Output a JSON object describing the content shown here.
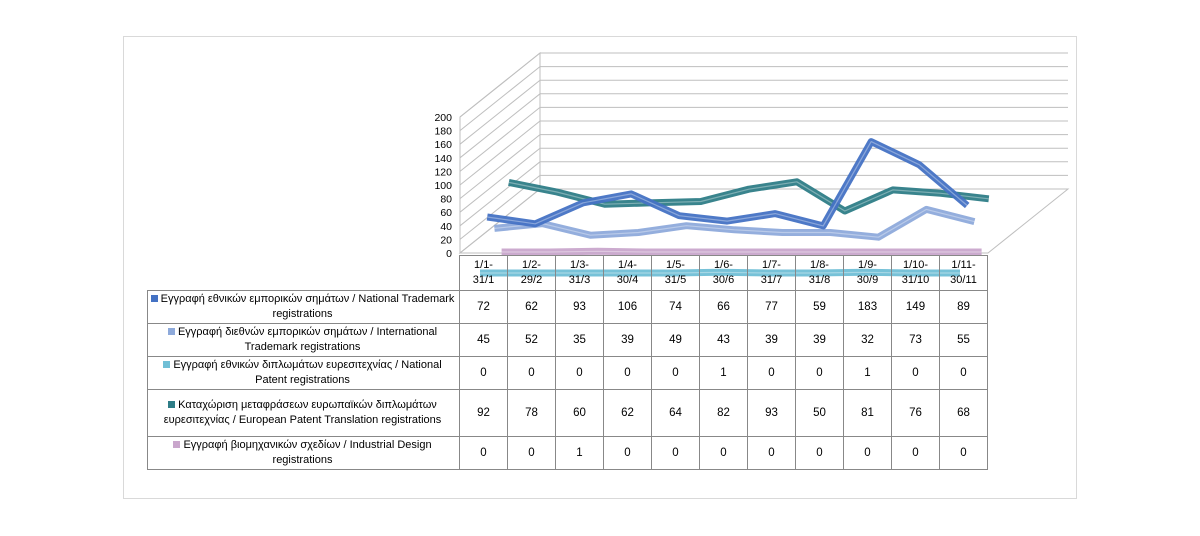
{
  "chart_data": {
    "type": "line",
    "title": "",
    "xlabel": "",
    "ylabel": "",
    "ylim": [
      0,
      200
    ],
    "yticks": [
      0,
      20,
      40,
      60,
      80,
      100,
      120,
      140,
      160,
      180,
      200
    ],
    "grid": true,
    "legend": "table-below",
    "categories": [
      "1/1-\n31/1",
      "1/2-\n29/2",
      "1/3-\n31/3",
      "1/4-\n30/4",
      "1/5-\n31/5",
      "1/6-\n30/6",
      "1/7-\n31/7",
      "1/8-\n31/8",
      "1/9-\n30/9",
      "1/10-\n31/10",
      "1/11-\n30/11"
    ],
    "series": [
      {
        "name": "Εγγραφή  εθνικών εμπορικών σημάτων  / National Trademark registrations",
        "color": "#4472c4",
        "values": [
          72,
          62,
          93,
          106,
          74,
          66,
          77,
          59,
          183,
          149,
          89
        ]
      },
      {
        "name": "Εγγραφή  διεθνών εμπορικών σημάτων / International Trademark registrations",
        "color": "#8eaadb",
        "values": [
          45,
          52,
          35,
          39,
          49,
          43,
          39,
          39,
          32,
          73,
          55
        ]
      },
      {
        "name": "Εγγραφή  εθνικών διπλωμάτων  ευρεσιτεχνίας / National Patent registrations",
        "color": "#70bfd6",
        "values": [
          0,
          0,
          0,
          0,
          0,
          1,
          0,
          0,
          1,
          0,
          0
        ]
      },
      {
        "name": "Καταχώριση μεταφράσεων  ευρωπαϊκών διπλωμάτων ευρεσιτεχνίας / European Patent Translation registrations",
        "color": "#2e7d87",
        "values": [
          92,
          78,
          60,
          62,
          64,
          82,
          93,
          50,
          81,
          76,
          68
        ]
      },
      {
        "name": "Εγγραφή  βιομηχανικών σχεδίων / Industrial Design registrations",
        "color": "#c9a6cc",
        "values": [
          0,
          0,
          1,
          0,
          0,
          0,
          0,
          0,
          0,
          0,
          0
        ]
      }
    ]
  }
}
